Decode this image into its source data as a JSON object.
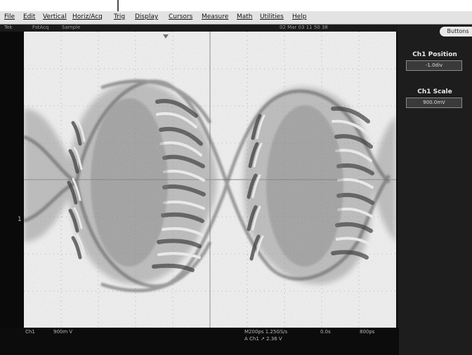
{
  "menu": {
    "items": [
      "File",
      "Edit",
      "Vertical",
      "Horiz/Acq",
      "Trig",
      "Display",
      "Cursors",
      "Measure",
      "Math",
      "Utilities",
      "Help"
    ]
  },
  "status_bar": {
    "mode": "Tek",
    "acq_mode": "FstAcq",
    "acq_type": "Sample",
    "datetime": "02 Mar 03 11 50 38"
  },
  "side_panel": {
    "buttons_tab": "Buttons",
    "ch1_position": {
      "label": "Ch1 Position",
      "value": "-1.0div"
    },
    "ch1_scale": {
      "label": "Ch1 Scale",
      "value": "900.0mV"
    }
  },
  "waveform": {
    "ground_marker": "1"
  },
  "readouts": {
    "channel": "Ch1",
    "volts_per_div": "900m V",
    "timebase": "M200ps 1.25GS/s",
    "delay": "0.0s",
    "record": "800ps",
    "trigger": "A Ch1 ↗ 2.36 V"
  },
  "colors": {
    "menu_bg": "#e3e3e3",
    "display_bg": "#f4f4f4",
    "frame_bg": "#0c0c0c",
    "panel_bg": "#1d1d1d",
    "waveform_ink": "#2a2a2a"
  },
  "icons": {
    "trigger_position": "triangle-down-icon",
    "annotation": "arrow-down-icon"
  }
}
